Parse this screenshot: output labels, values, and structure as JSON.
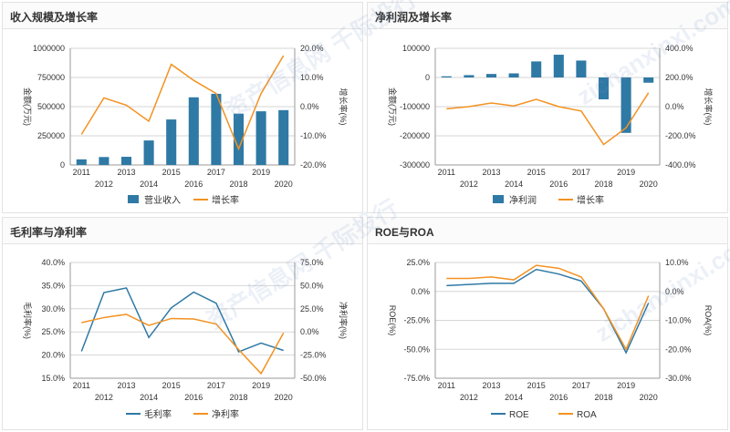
{
  "watermarks": [
    "资产信息网 千际投行",
    "zichanxinxi.com",
    "资产信息网 千际投行",
    "zichanxinxi.com"
  ],
  "colors": {
    "bar": "#2f79a5",
    "orange": "#f39222",
    "blue_line": "#2f79a5",
    "grid": "#d6d6d6",
    "axis_text": "#333333"
  },
  "chart_data": [
    {
      "id": "revenue",
      "title": "收入规模及增长率",
      "type": "bar+line",
      "categories": [
        "2011",
        "2012",
        "2013",
        "2014",
        "2015",
        "2016",
        "2017",
        "2018",
        "2019",
        "2020"
      ],
      "bar_series": {
        "name": "营业收入",
        "values": [
          48000,
          68000,
          70000,
          210000,
          390000,
          580000,
          610000,
          440000,
          460000,
          470000
        ]
      },
      "line_series": {
        "name": "增长率",
        "values": [
          -9.5,
          3,
          0.5,
          -5,
          14.5,
          9,
          4.5,
          -14.5,
          4.5,
          17.5
        ]
      },
      "left_axis": {
        "label": "金额(万元)",
        "min": 0,
        "max": 1000000,
        "ticks": [
          "0",
          "250000",
          "500000",
          "750000",
          "1000000"
        ]
      },
      "right_axis": {
        "label": "增长率(%)",
        "min": -20,
        "max": 20,
        "ticks": [
          "-20.0%",
          "-10.0%",
          "0.0%",
          "10.0%",
          "20.0%"
        ]
      },
      "legend": [
        "营业收入",
        "增长率"
      ]
    },
    {
      "id": "netprofit",
      "title": "净利润及增长率",
      "type": "bar+line",
      "categories": [
        "2011",
        "2012",
        "2013",
        "2014",
        "2015",
        "2016",
        "2017",
        "2018",
        "2019",
        "2020"
      ],
      "bar_series": {
        "name": "净利润",
        "values": [
          4000,
          8000,
          12000,
          14000,
          55000,
          78000,
          58000,
          -75000,
          -190000,
          -18000
        ]
      },
      "line_series": {
        "name": "增长率",
        "values": [
          -15,
          0,
          25,
          5,
          50,
          0,
          -30,
          -260,
          -145,
          95
        ]
      },
      "left_axis": {
        "label": "金额(万元)",
        "min": -300000,
        "max": 100000,
        "ticks": [
          "-300000",
          "-200000",
          "-100000",
          "0",
          "100000"
        ]
      },
      "right_axis": {
        "label": "增长率(%)",
        "min": -400,
        "max": 400,
        "ticks": [
          "-400.0%",
          "-200.0%",
          "0.0%",
          "200.0%",
          "400.0%"
        ]
      },
      "legend": [
        "净利润",
        "增长率"
      ]
    },
    {
      "id": "margins",
      "title": "毛利率与净利率",
      "type": "line",
      "categories": [
        "2011",
        "2012",
        "2013",
        "2014",
        "2015",
        "2016",
        "2017",
        "2018",
        "2019",
        "2020"
      ],
      "line_left": {
        "name": "毛利率",
        "values": [
          20.8,
          33.5,
          34.5,
          23.8,
          30.2,
          33.6,
          31.2,
          20.7,
          22.6,
          21
        ]
      },
      "line_right": {
        "name": "净利率",
        "values": [
          10,
          15.5,
          19,
          7,
          14.5,
          14,
          8.5,
          -19,
          -45,
          -1
        ]
      },
      "left_axis": {
        "label": "毛利率(%)",
        "min": 15,
        "max": 40,
        "ticks": [
          "15.0%",
          "20.0%",
          "25.0%",
          "30.0%",
          "35.0%",
          "40.0%"
        ]
      },
      "right_axis": {
        "label": "净利率(%)",
        "min": -50,
        "max": 75,
        "ticks": [
          "-50.0%",
          "-25.0%",
          "0.0%",
          "25.0%",
          "50.0%",
          "75.0%"
        ]
      },
      "legend": [
        "毛利率",
        "净利率"
      ]
    },
    {
      "id": "roe_roa",
      "title": "ROE与ROA",
      "type": "line",
      "categories": [
        "2011",
        "2012",
        "2013",
        "2014",
        "2015",
        "2016",
        "2017",
        "2018",
        "2019",
        "2020"
      ],
      "line_left": {
        "name": "ROE",
        "values": [
          5,
          6,
          7,
          7,
          19,
          15,
          9,
          -15,
          -53,
          -10
        ]
      },
      "line_right": {
        "name": "ROA",
        "values": [
          4.5,
          4.5,
          5,
          4,
          9,
          8,
          5,
          -6,
          -20,
          -1.5
        ]
      },
      "left_axis": {
        "label": "ROE(%)",
        "min": -75,
        "max": 25,
        "ticks": [
          "-75.0%",
          "-50.0%",
          "-25.0%",
          "0.0%",
          "25.0%"
        ]
      },
      "right_axis": {
        "label": "ROA(%)",
        "min": -30,
        "max": 10,
        "ticks": [
          "-30.0%",
          "-20.0%",
          "-10.0%",
          "0.0%",
          "10.0%"
        ]
      },
      "legend": [
        "ROE",
        "ROA"
      ]
    }
  ]
}
